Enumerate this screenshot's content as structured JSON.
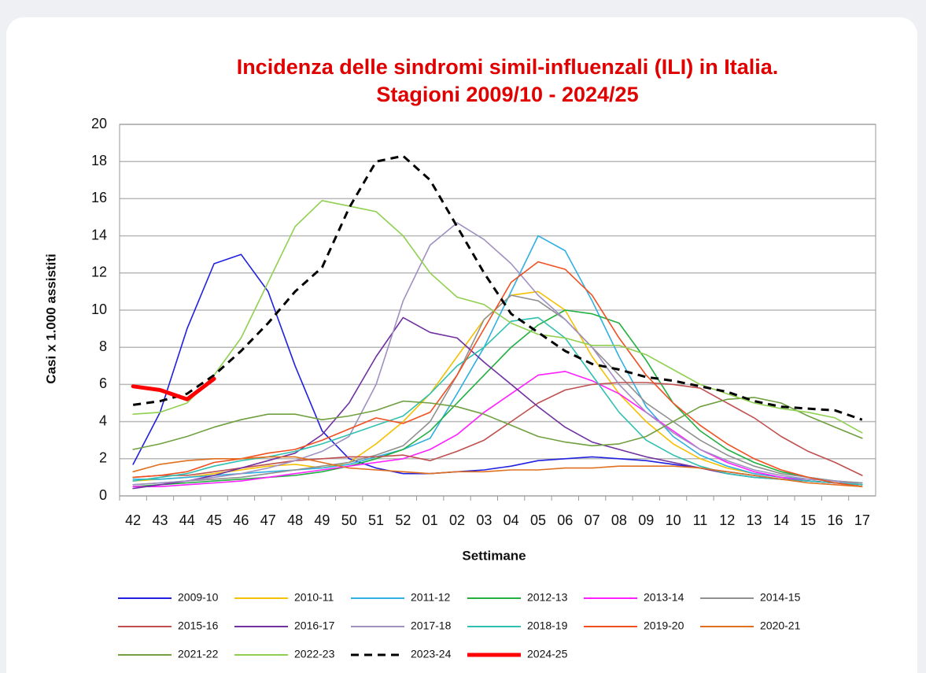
{
  "chart_data": {
    "type": "line",
    "title": "Incidenza delle sindromi simil-influenzali (ILI) in Italia.",
    "subtitle": "Stagioni 2009/10 - 2024/25",
    "y_label": "Casi x 1.000 assistiti",
    "x_label": "Settimane",
    "categories": [
      "42",
      "43",
      "44",
      "45",
      "46",
      "47",
      "48",
      "49",
      "50",
      "51",
      "52",
      "01",
      "02",
      "03",
      "04",
      "05",
      "06",
      "07",
      "08",
      "09",
      "10",
      "11",
      "12",
      "13",
      "14",
      "15",
      "16",
      "17"
    ],
    "ylim": [
      0,
      20
    ],
    "yticks": [
      0,
      2,
      4,
      6,
      8,
      10,
      12,
      14,
      16,
      18,
      20
    ],
    "grid": true,
    "series": [
      {
        "name": "2009-10",
        "color": "#2020e0",
        "values": [
          1.7,
          4.5,
          9,
          12.5,
          13,
          11,
          7,
          3.5,
          2,
          1.5,
          1.2,
          1.2,
          1.3,
          1.4,
          1.6,
          1.9,
          2.0,
          2.1,
          2.0,
          1.9,
          1.7,
          1.5,
          1.3,
          1.1,
          0.9,
          0.8,
          0.7,
          0.6
        ]
      },
      {
        "name": "2010-11",
        "color": "#f5c000",
        "values": [
          0.8,
          0.9,
          1.0,
          1.2,
          1.4,
          1.6,
          1.7,
          1.5,
          1.8,
          2.8,
          4,
          5.5,
          7.5,
          9.5,
          10.8,
          11,
          10,
          7.5,
          5.5,
          4,
          2.8,
          2,
          1.5,
          1.2,
          1,
          0.8,
          0.7,
          0.6
        ]
      },
      {
        "name": "2011-12",
        "color": "#30b0e0",
        "values": [
          0.9,
          0.9,
          1.0,
          1.1,
          1.2,
          1.3,
          1.4,
          1.5,
          1.7,
          2.1,
          2.5,
          3.1,
          5.5,
          8,
          11,
          14,
          13.2,
          10.5,
          7.5,
          4.8,
          3.2,
          2.2,
          1.6,
          1.2,
          1,
          0.9,
          0.8,
          0.7
        ]
      },
      {
        "name": "2012-13",
        "color": "#20b040",
        "values": [
          0.5,
          0.6,
          0.7,
          0.8,
          0.9,
          1.0,
          1.1,
          1.3,
          1.6,
          2,
          2.5,
          3.5,
          5,
          6.5,
          8,
          9.2,
          10,
          9.8,
          9.3,
          7.3,
          5,
          3.5,
          2.5,
          1.8,
          1.3,
          1,
          0.8,
          0.6
        ]
      },
      {
        "name": "2013-14",
        "color": "#ff20ff",
        "values": [
          0.5,
          0.5,
          0.6,
          0.7,
          0.8,
          1.0,
          1.2,
          1.4,
          1.6,
          1.8,
          2,
          2.5,
          3.3,
          4.5,
          5.5,
          6.5,
          6.7,
          6.2,
          5.5,
          4.5,
          3.5,
          2.5,
          1.8,
          1.3,
          1,
          0.8,
          0.7,
          0.6
        ]
      },
      {
        "name": "2014-15",
        "color": "#909090",
        "values": [
          0.6,
          0.7,
          0.8,
          0.9,
          1,
          1.2,
          1.4,
          1.6,
          1.8,
          2.2,
          2.7,
          4,
          6.5,
          9.5,
          10.8,
          10.5,
          9.5,
          8,
          6.5,
          5,
          4,
          3,
          2.2,
          1.6,
          1.2,
          1,
          0.8,
          0.7
        ]
      },
      {
        "name": "2015-16",
        "color": "#c05050",
        "values": [
          1.0,
          1.1,
          1.1,
          1.3,
          1.5,
          1.7,
          1.9,
          2.0,
          2.1,
          2.1,
          2.2,
          1.9,
          2.4,
          3,
          4,
          5,
          5.7,
          6,
          6.1,
          6.1,
          6,
          5.8,
          5,
          4.2,
          3.2,
          2.4,
          1.8,
          1.1
        ]
      },
      {
        "name": "2016-17",
        "color": "#7030a0",
        "values": [
          0.4,
          0.6,
          0.8,
          1.1,
          1.5,
          1.9,
          2.3,
          3.3,
          5,
          7.5,
          9.6,
          8.8,
          8.5,
          7.2,
          6,
          4.8,
          3.7,
          2.9,
          2.5,
          2.1,
          1.8,
          1.5,
          1.2,
          1,
          0.9,
          0.8,
          0.7,
          0.6
        ]
      },
      {
        "name": "2017-18",
        "color": "#a090c0",
        "values": [
          0.6,
          0.7,
          0.8,
          1,
          1.2,
          1.5,
          1.9,
          2.4,
          3.2,
          6,
          10.5,
          13.5,
          14.7,
          13.8,
          12.5,
          10.8,
          9.5,
          8,
          6,
          4.5,
          3.4,
          2.5,
          1.9,
          1.4,
          1.1,
          0.9,
          0.8,
          0.6
        ]
      },
      {
        "name": "2018-19",
        "color": "#30c0b0",
        "values": [
          0.8,
          1.0,
          1.2,
          1.6,
          1.9,
          2.1,
          2.4,
          2.8,
          3.3,
          3.8,
          4.3,
          5.5,
          7,
          8,
          9.4,
          9.6,
          8.5,
          6.5,
          4.5,
          3,
          2.2,
          1.6,
          1.2,
          1,
          0.9,
          0.8,
          0.7,
          0.6
        ]
      },
      {
        "name": "2019-20",
        "color": "#f05020",
        "values": [
          1.0,
          1.1,
          1.3,
          1.8,
          2.0,
          2.3,
          2.5,
          3,
          3.6,
          4.2,
          3.9,
          4.5,
          6.5,
          9,
          11.5,
          12.6,
          12.2,
          10.8,
          8.5,
          6.5,
          5,
          3.8,
          2.8,
          2,
          1.4,
          1,
          0.7,
          0.5
        ]
      },
      {
        "name": "2020-21",
        "color": "#e07020",
        "values": [
          1.3,
          1.7,
          1.9,
          2.0,
          2.0,
          2.1,
          2.1,
          1.8,
          1.5,
          1.4,
          1.3,
          1.2,
          1.3,
          1.3,
          1.4,
          1.4,
          1.5,
          1.5,
          1.6,
          1.6,
          1.6,
          1.5,
          1.3,
          1.1,
          0.9,
          0.7,
          0.6,
          0.5
        ]
      },
      {
        "name": "2021-22",
        "color": "#70a040",
        "values": [
          2.5,
          2.8,
          3.2,
          3.7,
          4.1,
          4.4,
          4.4,
          4.1,
          4.3,
          4.6,
          5.1,
          5,
          4.8,
          4.4,
          3.8,
          3.2,
          2.9,
          2.7,
          2.8,
          3.2,
          4,
          4.8,
          5.2,
          5.3,
          5,
          4.3,
          3.7,
          3.1
        ]
      },
      {
        "name": "2022-23",
        "color": "#90d050",
        "values": [
          4.4,
          4.5,
          5,
          6.5,
          8.5,
          11.5,
          14.5,
          15.9,
          15.6,
          15.3,
          14,
          12,
          10.7,
          10.3,
          9.3,
          8.7,
          8.5,
          8.1,
          8.1,
          7.6,
          6.8,
          6.0,
          5.5,
          5.0,
          4.7,
          4.5,
          4.2,
          3.4
        ]
      },
      {
        "name": "2023-24",
        "color": "#000000",
        "dashed": true,
        "linewidth": 3,
        "values": [
          4.9,
          5.1,
          5.5,
          6.5,
          7.8,
          9.3,
          11,
          12.3,
          15.5,
          18,
          18.3,
          17,
          14.5,
          12,
          9.8,
          8.8,
          7.8,
          7.1,
          6.8,
          6.4,
          6.2,
          5.9,
          5.6,
          5.1,
          4.8,
          4.7,
          4.6,
          4.1
        ]
      },
      {
        "name": "2024-25",
        "color": "#ff0000",
        "linewidth": 5,
        "values": [
          5.9,
          5.7,
          5.2,
          6.3,
          null,
          null,
          null,
          null,
          null,
          null,
          null,
          null,
          null,
          null,
          null,
          null,
          null,
          null,
          null,
          null,
          null,
          null,
          null,
          null,
          null,
          null,
          null,
          null
        ]
      }
    ]
  }
}
